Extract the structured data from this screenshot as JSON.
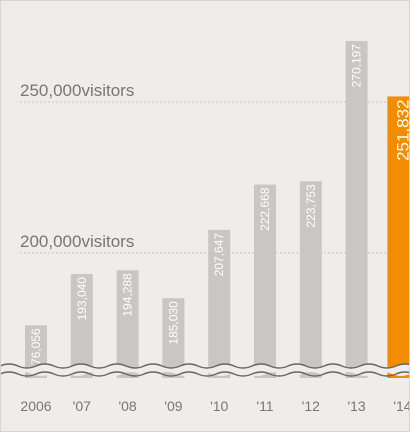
{
  "chart_data": {
    "type": "bar",
    "categories": [
      "2006",
      "'07",
      "'08",
      "'09",
      "'10",
      "'11",
      "'12",
      "'13",
      "'14"
    ],
    "values": [
      176056,
      193040,
      194288,
      185030,
      207647,
      222668,
      223753,
      270197,
      251832
    ],
    "value_labels": [
      "176,056",
      "193,040",
      "194,288",
      "185,030",
      "207,647",
      "222,668",
      "223,753",
      "270,197",
      "251,832"
    ],
    "highlight_index": 8,
    "reference_lines": [
      {
        "value": 250000,
        "label": "250,000visitors"
      },
      {
        "value": 200000,
        "label": "200,000visitors"
      }
    ],
    "axis_break": true,
    "grid": false,
    "title": "",
    "xlabel": "",
    "ylabel": ""
  },
  "colors": {
    "background": "#efecea",
    "bar": "#c9c7c5",
    "highlight_bar": "#f28c00",
    "reference_line": "#c7c3c0",
    "label_text": "#777777",
    "value_text": "#ffffff"
  }
}
